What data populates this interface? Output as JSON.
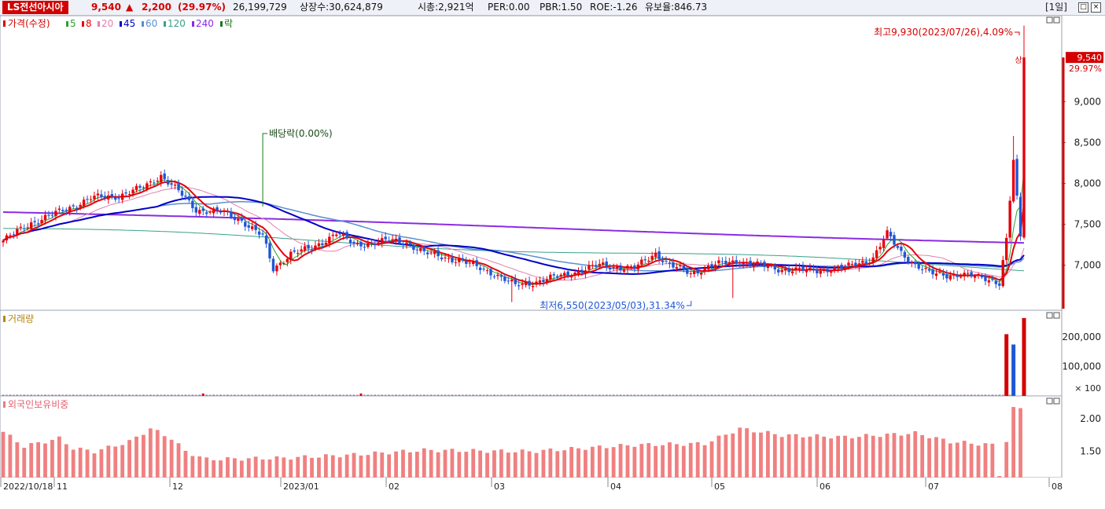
{
  "header": {
    "stock_name": "LS전선아시아",
    "price": "9,540",
    "change_arrow": "▲",
    "change": "2,200",
    "change_pct": "(29.97%)",
    "volume": "26,199,729",
    "shares": "상장수:30,624,879",
    "market_cap": "시총:2,921억",
    "per": "PER:0.00",
    "pbr": "PBR:1.50",
    "roe": "ROE:-1.26",
    "float_ratio": "유보율:846.73",
    "period": "[1일]",
    "up_color": "#d40000"
  },
  "legend": {
    "price_label": "가격(수정)",
    "ma": [
      {
        "label": "5",
        "color": "#2aa22a"
      },
      {
        "label": "8",
        "color": "#e8000b"
      },
      {
        "label": "20",
        "color": "#e080b0"
      },
      {
        "label": "45",
        "color": "#0000c8"
      },
      {
        "label": "60",
        "color": "#5a8fd0"
      },
      {
        "label": "120",
        "color": "#3aa08a"
      },
      {
        "label": "240",
        "color": "#8a2be2"
      }
    ],
    "drop_label": "락",
    "volume_label": "거래량",
    "foreign_label": "외국인보유비중"
  },
  "annotations": {
    "dividend": "배당락(0.00%)",
    "high": "최고9,930(2023/07/26),4.09%",
    "low": "최저6,550(2023/05/03),31.34%",
    "upper_limit": "상",
    "last_price": "9,540",
    "last_pct": "29.97%"
  },
  "axes": {
    "price_ticks": [
      "9,000",
      "8,500",
      "8,000",
      "7,500",
      "7,000"
    ],
    "volume_ticks": [
      "200,000",
      "100,000"
    ],
    "volume_unit": "× 100",
    "foreign_ticks": [
      "2.00",
      "1.50"
    ],
    "x_labels": [
      "2022/10/18",
      "11",
      "12",
      "2023/01",
      "02",
      "03",
      "04",
      "05",
      "06",
      "07",
      "08"
    ]
  },
  "chart_data": {
    "type": "candlestick",
    "title": "LS전선아시아",
    "price_range": [
      6450,
      10050
    ],
    "price_anchors": [
      [
        0,
        7300
      ],
      [
        8,
        7520
      ],
      [
        16,
        7650
      ],
      [
        25,
        7820
      ],
      [
        33,
        7850
      ],
      [
        40,
        7950
      ],
      [
        45,
        8100
      ],
      [
        50,
        7900
      ],
      [
        55,
        7680
      ],
      [
        62,
        7650
      ],
      [
        68,
        7550
      ],
      [
        74,
        7350
      ],
      [
        77,
        6950
      ],
      [
        82,
        7150
      ],
      [
        88,
        7200
      ],
      [
        95,
        7400
      ],
      [
        100,
        7250
      ],
      [
        110,
        7300
      ],
      [
        115,
        7280
      ],
      [
        120,
        7150
      ],
      [
        130,
        7060
      ],
      [
        140,
        6900
      ],
      [
        146,
        6750
      ],
      [
        152,
        6800
      ],
      [
        160,
        6880
      ],
      [
        170,
        7000
      ],
      [
        180,
        6960
      ],
      [
        186,
        7150
      ],
      [
        190,
        7000
      ],
      [
        196,
        6900
      ],
      [
        202,
        7000
      ],
      [
        210,
        7050
      ],
      [
        220,
        6960
      ],
      [
        230,
        6930
      ],
      [
        240,
        6970
      ],
      [
        248,
        7090
      ],
      [
        252,
        7380
      ],
      [
        256,
        7160
      ],
      [
        260,
        7000
      ],
      [
        264,
        6900
      ],
      [
        272,
        6880
      ],
      [
        280,
        6850
      ],
      [
        284,
        6780
      ],
      [
        286,
        7300
      ],
      [
        288,
        8280
      ],
      [
        290,
        7340
      ],
      [
        291,
        9540
      ]
    ],
    "high_point": {
      "date": "2023/07/26",
      "value": 9930
    },
    "low_point": {
      "date": "2023/05/03",
      "value": 6550
    },
    "last_close": 9540,
    "volume_range": [
      0,
      270000
    ],
    "volume_last": [
      210000,
      175000,
      265000
    ],
    "foreign_range": [
      1.1,
      2.35
    ],
    "foreign_anchors": [
      [
        0,
        1.8
      ],
      [
        6,
        1.58
      ],
      [
        16,
        1.7
      ],
      [
        20,
        1.55
      ],
      [
        26,
        1.5
      ],
      [
        36,
        1.65
      ],
      [
        42,
        1.85
      ],
      [
        48,
        1.7
      ],
      [
        52,
        1.5
      ],
      [
        58,
        1.38
      ],
      [
        80,
        1.4
      ],
      [
        100,
        1.45
      ],
      [
        120,
        1.52
      ],
      [
        150,
        1.5
      ],
      [
        180,
        1.6
      ],
      [
        200,
        1.62
      ],
      [
        210,
        1.85
      ],
      [
        222,
        1.75
      ],
      [
        240,
        1.72
      ],
      [
        260,
        1.78
      ],
      [
        270,
        1.65
      ],
      [
        282,
        1.6
      ],
      [
        284,
        1.15
      ],
      [
        288,
        2.15
      ],
      [
        291,
        2.18
      ]
    ],
    "ma_long": {
      "y240_start": 7650,
      "y240_end": 7280,
      "y120_start": 7450,
      "y120_end": 6960
    }
  }
}
